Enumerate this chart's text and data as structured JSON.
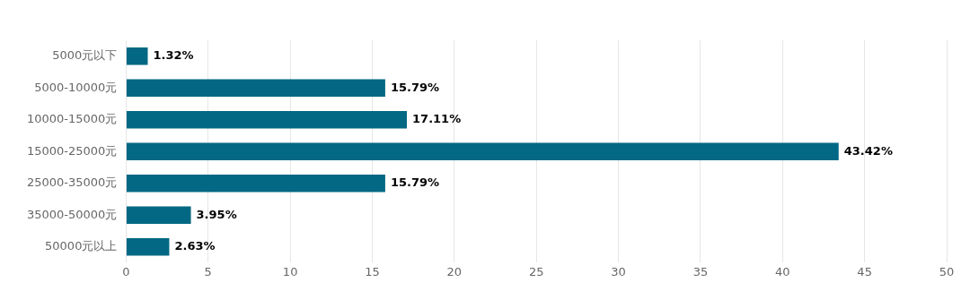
{
  "chart_data": {
    "type": "bar",
    "orientation": "horizontal",
    "categories": [
      "5000元以下",
      "5000-10000元",
      "10000-15000元",
      "15000-25000元",
      "25000-35000元",
      "35000-50000元",
      "50000元以上"
    ],
    "values": [
      1.32,
      15.79,
      17.11,
      43.42,
      15.79,
      3.95,
      2.63
    ],
    "value_labels": [
      "1.32%",
      "15.79%",
      "17.11%",
      "43.42%",
      "15.79%",
      "3.95%",
      "2.63%"
    ],
    "color": "#036883",
    "xlim": [
      0,
      50
    ],
    "xticks": [
      0,
      5,
      10,
      15,
      20,
      25,
      30,
      35,
      40,
      45,
      50
    ],
    "grid": "x",
    "legend": false
  }
}
